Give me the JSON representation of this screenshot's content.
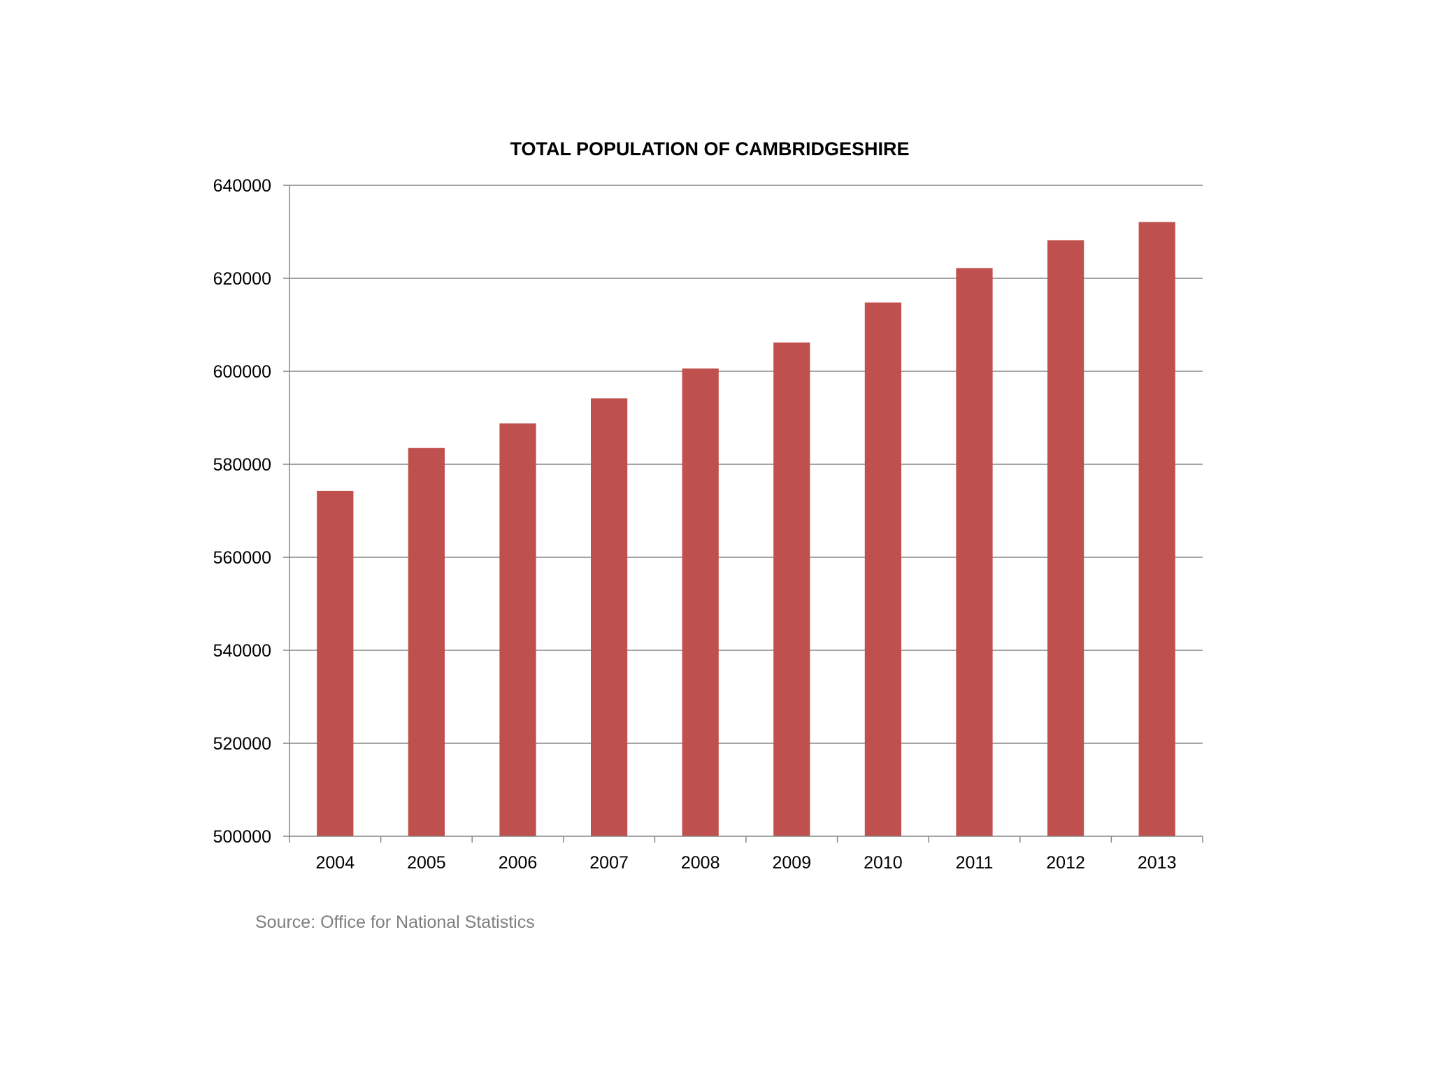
{
  "chart_data": {
    "type": "bar",
    "title": "TOTAL POPULATION OF CAMBRIDGESHIRE",
    "xlabel": "",
    "ylabel": "",
    "categories": [
      "2004",
      "2005",
      "2006",
      "2007",
      "2008",
      "2009",
      "2010",
      "2011",
      "2012",
      "2013"
    ],
    "values": [
      574300,
      583500,
      588800,
      594200,
      600600,
      606200,
      614800,
      622200,
      628200,
      632100
    ],
    "ylim": [
      500000,
      640000
    ],
    "yticks": [
      500000,
      520000,
      540000,
      560000,
      580000,
      600000,
      620000,
      640000
    ],
    "ytick_labels": [
      "500000",
      "520000",
      "540000",
      "560000",
      "580000",
      "600000",
      "620000",
      "640000"
    ],
    "grid": true,
    "legend": "none",
    "bar_color": "#c0504d",
    "grid_color": "#868686"
  },
  "footer": {
    "source": "Source: Office for National Statistics"
  }
}
